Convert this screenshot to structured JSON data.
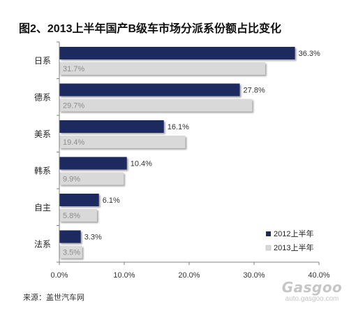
{
  "chart_data": {
    "type": "bar",
    "orientation": "horizontal",
    "title": "图2、2013上半年国产B级车市场分派系份额占比变化",
    "xlabel": "",
    "ylabel": "",
    "categories": [
      "日系",
      "德系",
      "美系",
      "韩系",
      "自主",
      "法系"
    ],
    "series": [
      {
        "name": "2012上半年",
        "color": "#1c2a5e",
        "label_color": "#333333",
        "label_position": "outside-end",
        "values": [
          36.3,
          27.8,
          16.1,
          10.4,
          6.1,
          3.3
        ],
        "labels": [
          "36.3%",
          "27.8%",
          "16.1%",
          "10.4%",
          "6.1%",
          "3.3%"
        ]
      },
      {
        "name": "2013上半年",
        "color": "#d9d9d9",
        "label_color": "#8c8c8c",
        "label_position": "inside-base",
        "values": [
          31.7,
          29.7,
          19.4,
          9.9,
          5.8,
          3.5
        ],
        "labels": [
          "31.7%",
          "29.7%",
          "19.4%",
          "9.9%",
          "5.8%",
          "3.5%"
        ]
      }
    ],
    "xlim": [
      0,
      40
    ],
    "x_ticks": [
      0,
      10,
      20,
      30,
      40
    ],
    "x_tick_labels": [
      "0.0%",
      "10.0%",
      "20.0%",
      "30.0%",
      "40.0%"
    ],
    "grid": false,
    "legend_position": "bottom-right"
  },
  "source": "来源：盖世汽车网",
  "watermark": {
    "logo": "Gasgoo",
    "url": "auto.gasgoo.com"
  }
}
